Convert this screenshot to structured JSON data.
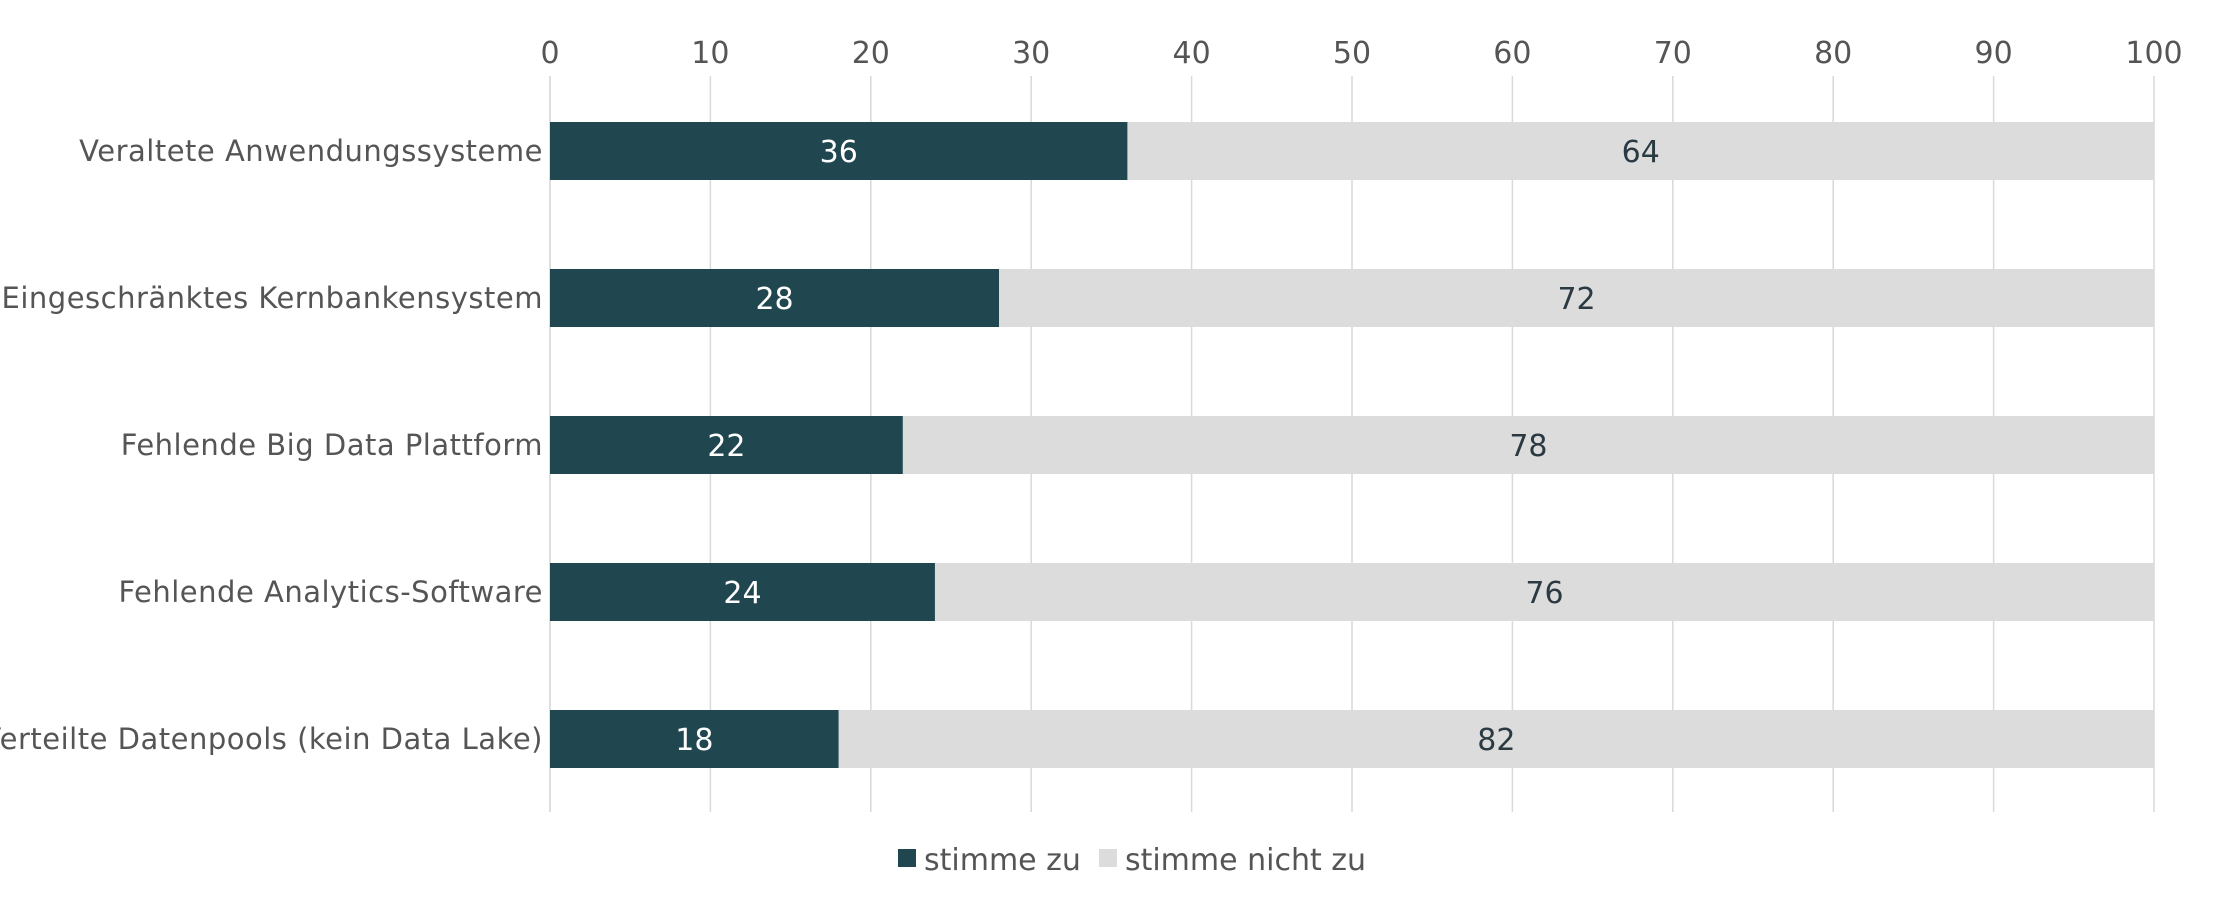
{
  "chart_data": {
    "type": "bar",
    "orientation": "horizontal",
    "stacked": true,
    "categories": [
      "Veraltete Anwendungssysteme",
      "Eingeschränktes Kernbankensystem",
      "Fehlende Big Data Plattform",
      "Fehlende Analytics-Software",
      "Verteilte Datenpools (kein Data Lake)"
    ],
    "series": [
      {
        "name": "stimme zu",
        "color": "#20464f",
        "values": [
          36,
          28,
          22,
          24,
          18
        ]
      },
      {
        "name": "stimme nicht zu",
        "color": "#dcdcdc",
        "values": [
          64,
          72,
          78,
          76,
          82
        ]
      }
    ],
    "xlim": [
      0,
      100
    ],
    "xticks": [
      "0",
      "10",
      "20",
      "30",
      "40",
      "50",
      "60",
      "70",
      "80",
      "90",
      "100"
    ],
    "x_axis_position": "top",
    "grid": true,
    "legend": "bottom-center",
    "data_labels": true
  }
}
